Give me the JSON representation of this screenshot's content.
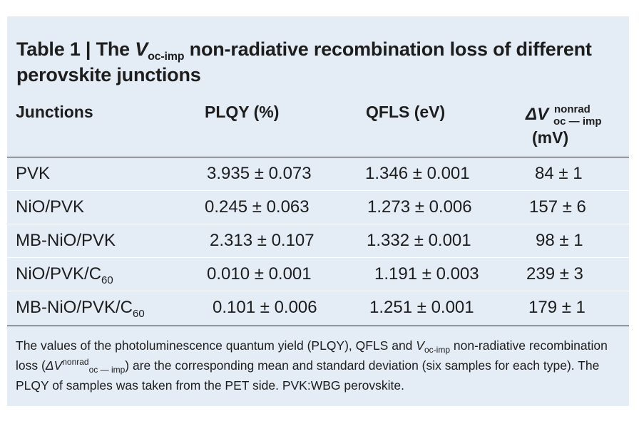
{
  "title": {
    "prefix": "Table 1 | The ",
    "v": "V",
    "v_sub": "oc-imp",
    "suffix": " non-radiative recombination loss of different perovskite junctions"
  },
  "headers": {
    "junctions": "Junctions",
    "plqy": "PLQY (%)",
    "qfls": "QFLS (eV)",
    "delta_symbol": "ΔV",
    "delta_sup": "nonrad",
    "delta_sub": "oc — imp",
    "delta_unit": "(mV)"
  },
  "rows": [
    {
      "junction": "PVK",
      "junction_sub": "",
      "plqy": "3.935 ± 0.073",
      "qfls": "1.346 ± 0.001",
      "delta": "84 ± 1"
    },
    {
      "junction": "NiO/PVK",
      "junction_sub": "",
      "plqy": "0.245 ± 0.063",
      "qfls": "1.273 ± 0.006",
      "delta": "157 ± 6"
    },
    {
      "junction": "MB-NiO/PVK",
      "junction_sub": "",
      "plqy": "2.313 ± 0.107",
      "qfls": "1.332 ± 0.001",
      "delta": "98 ± 1"
    },
    {
      "junction": "NiO/PVK/C",
      "junction_sub": "60",
      "plqy": "0.010 ± 0.001",
      "qfls": "1.191 ± 0.003",
      "delta": "239 ± 3"
    },
    {
      "junction": "MB-NiO/PVK/C",
      "junction_sub": "60",
      "plqy": "0.101 ± 0.006",
      "qfls": "1.251 ± 0.001",
      "delta": "179 ± 1"
    }
  ],
  "footnote": {
    "part1": "The values of the photoluminescence quantum yield (PLQY), QFLS and ",
    "v": "V",
    "v_sub": "oc-imp",
    "part2": " non-radiative recombination loss (",
    "delta": "ΔV",
    "delta_sup": "nonrad",
    "delta_sub": "oc — imp",
    "part3": ") are the corresponding mean and standard deviation (six samples for each type). The PLQY of samples was taken from the PET side. PVK:WBG perovskite."
  },
  "colors": {
    "background": "#e4ecf6",
    "text": "#1d1d1d"
  }
}
